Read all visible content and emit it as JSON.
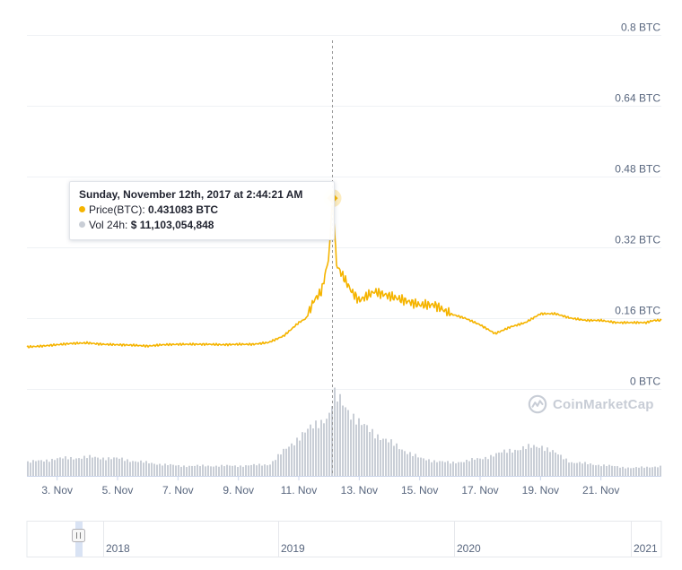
{
  "chart_data": {
    "type": "line",
    "title": "",
    "xlabel": "",
    "ylabel": "",
    "y_unit": "BTC",
    "ylim": [
      0,
      0.8
    ],
    "yticks": [
      "0 BTC",
      "0.16 BTC",
      "0.32 BTC",
      "0.48 BTC",
      "0.64 BTC",
      "0.8 BTC"
    ],
    "ytick_values": [
      0,
      0.16,
      0.32,
      0.48,
      0.64,
      0.8
    ],
    "xlim": [
      "2017-11-02",
      "2017-11-23"
    ],
    "xticks": [
      "3. Nov",
      "5. Nov",
      "7. Nov",
      "9. Nov",
      "11. Nov",
      "13. Nov",
      "15. Nov",
      "17. Nov",
      "19. Nov",
      "21. Nov"
    ],
    "xtick_dates": [
      "2017-11-03",
      "2017-11-05",
      "2017-11-07",
      "2017-11-09",
      "2017-11-11",
      "2017-11-13",
      "2017-11-15",
      "2017-11-17",
      "2017-11-19",
      "2017-11-21"
    ],
    "grid": true,
    "price_color": "#f5b400",
    "volume_color": "#c9ced6",
    "series": [
      {
        "name": "Price(BTC)",
        "x": [
          "2017-11-02 00:00",
          "2017-11-02 12:00",
          "2017-11-03 00:00",
          "2017-11-03 12:00",
          "2017-11-04 00:00",
          "2017-11-04 12:00",
          "2017-11-05 00:00",
          "2017-11-05 12:00",
          "2017-11-06 00:00",
          "2017-11-06 12:00",
          "2017-11-07 00:00",
          "2017-11-07 12:00",
          "2017-11-08 00:00",
          "2017-11-08 12:00",
          "2017-11-09 00:00",
          "2017-11-09 12:00",
          "2017-11-10 00:00",
          "2017-11-10 12:00",
          "2017-11-11 00:00",
          "2017-11-11 06:00",
          "2017-11-11 12:00",
          "2017-11-11 18:00",
          "2017-11-12 00:00",
          "2017-11-12 02:44",
          "2017-11-12 06:00",
          "2017-11-12 12:00",
          "2017-11-12 18:00",
          "2017-11-13 00:00",
          "2017-11-13 12:00",
          "2017-11-14 00:00",
          "2017-11-14 12:00",
          "2017-11-15 00:00",
          "2017-11-15 12:00",
          "2017-11-16 00:00",
          "2017-11-16 12:00",
          "2017-11-17 00:00",
          "2017-11-17 12:00",
          "2017-11-18 00:00",
          "2017-11-18 12:00",
          "2017-11-19 00:00",
          "2017-11-19 12:00",
          "2017-11-20 00:00",
          "2017-11-20 12:00",
          "2017-11-21 00:00",
          "2017-11-21 12:00",
          "2017-11-22 00:00",
          "2017-11-22 12:00",
          "2017-11-22 18:00"
        ],
        "values": [
          0.095,
          0.097,
          0.1,
          0.103,
          0.104,
          0.101,
          0.1,
          0.099,
          0.097,
          0.1,
          0.101,
          0.101,
          0.101,
          0.1,
          0.101,
          0.101,
          0.105,
          0.12,
          0.15,
          0.16,
          0.2,
          0.22,
          0.3,
          0.431083,
          0.28,
          0.25,
          0.22,
          0.2,
          0.22,
          0.21,
          0.2,
          0.19,
          0.19,
          0.17,
          0.16,
          0.145,
          0.125,
          0.14,
          0.15,
          0.17,
          0.17,
          0.16,
          0.155,
          0.155,
          0.15,
          0.15,
          0.15,
          0.155
        ]
      },
      {
        "name": "Vol 24h",
        "x": [
          "2017-11-02",
          "2017-11-03",
          "2017-11-04",
          "2017-11-05",
          "2017-11-06",
          "2017-11-07",
          "2017-11-08",
          "2017-11-09",
          "2017-11-10",
          "2017-11-11",
          "2017-11-11 12:00",
          "2017-11-12",
          "2017-11-12 02:44",
          "2017-11-12 12:00",
          "2017-11-13",
          "2017-11-14",
          "2017-11-15",
          "2017-11-16",
          "2017-11-17",
          "2017-11-18",
          "2017-11-19",
          "2017-11-20",
          "2017-11-21",
          "2017-11-22",
          "2017-11-22 18:00"
        ],
        "values": [
          1900000000.0,
          2400000000.0,
          2600000000.0,
          2400000000.0,
          1800000000.0,
          1400000000.0,
          1400000000.0,
          1400000000.0,
          1600000000.0,
          5500000000.0,
          7000000000.0,
          8600000000.0,
          11100000000.0,
          9800000000.0,
          7200000000.0,
          4600000000.0,
          2400000000.0,
          1800000000.0,
          2400000000.0,
          3600000000.0,
          4200000000.0,
          1900000000.0,
          1500000000.0,
          1100000000.0,
          1300000000.0
        ]
      }
    ],
    "navigator_labels": [
      "2018",
      "2019",
      "2020",
      "2021"
    ],
    "tooltip": {
      "date": "Sunday, November 12th, 2017 at 2:44:21 AM",
      "price_label": "Price(BTC):",
      "price_value": "0.431083 BTC",
      "volume_label": "Vol 24h:",
      "volume_value": "$ 11,103,054,848"
    }
  },
  "watermark": {
    "text": "CoinMarketCap",
    "icon": "coinmarketcap-logo-icon"
  }
}
